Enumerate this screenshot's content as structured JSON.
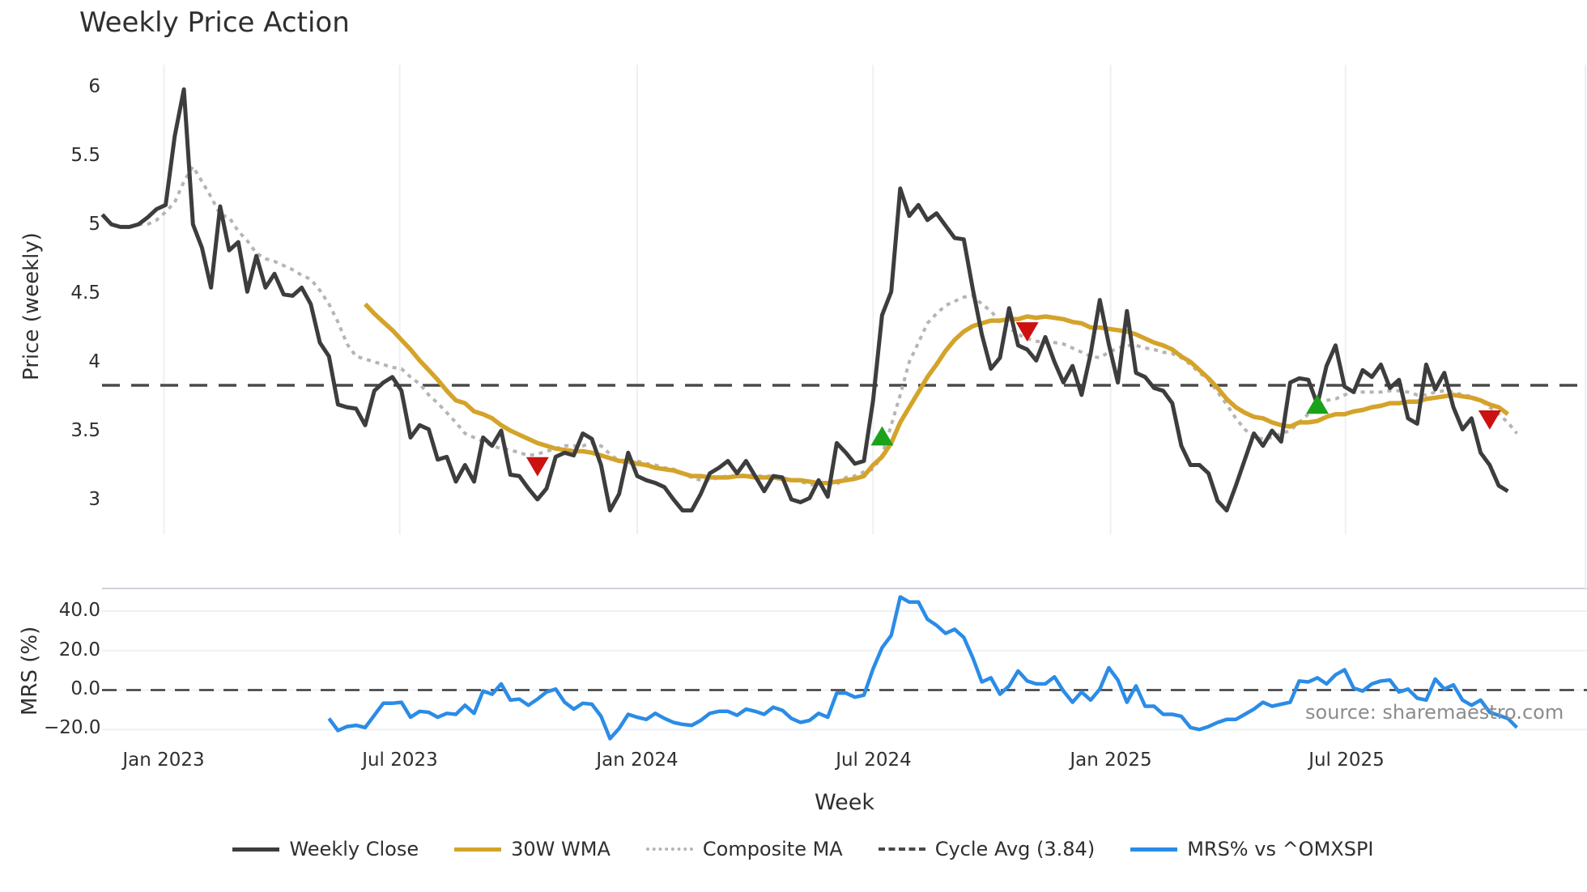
{
  "title": "Weekly Price Action",
  "watermark": "source: sharemaestro.com",
  "axes": {
    "price_ylabel": "Price (weekly)",
    "mrs_ylabel": "MRS (%)",
    "xlabel": "Week",
    "price_yticks": [
      "6",
      "5.5",
      "5",
      "4.5",
      "4",
      "3.5",
      "3"
    ],
    "mrs_yticks": [
      "40.0",
      "20.0",
      "0.0",
      "−20.0"
    ],
    "xticks": [
      "Jan 2023",
      "Jul 2023",
      "Jan 2024",
      "Jul 2024",
      "Jan 2025",
      "Jul 2025"
    ]
  },
  "legend": [
    {
      "label": "Weekly Close",
      "color": "#3d3d3d",
      "style": "solid"
    },
    {
      "label": "30W WMA",
      "color": "#d4a32a",
      "style": "solid"
    },
    {
      "label": "Composite MA",
      "color": "#b5b5b5",
      "style": "dotted"
    },
    {
      "label": "Cycle Avg (3.84)",
      "color": "#4a4a4a",
      "style": "dashed"
    },
    {
      "label": "MRS% vs ^OMXSPI",
      "color": "#2b8ce6",
      "style": "solid"
    }
  ],
  "colors": {
    "close": "#3d3d3d",
    "wma": "#d4a32a",
    "composite": "#b5b5b5",
    "cycle": "#4a4a4a",
    "mrs": "#2b8ce6",
    "buy": "#1aa31a",
    "sell": "#cc1111",
    "grid": "#eef0f3"
  },
  "chart_data": [
    {
      "type": "line",
      "title": "Weekly Price Action",
      "xlabel": "Week",
      "ylabel": "Price (weekly)",
      "ylim": [
        2.8,
        6.15
      ],
      "x_tick_labels": [
        "Jan 2023",
        "Jul 2023",
        "Jan 2024",
        "Jul 2024",
        "Jan 2025",
        "Jul 2025"
      ],
      "x_tick_week_index": [
        6.8,
        32.8,
        59.0,
        85.0,
        111.2,
        137.1
      ],
      "grid": "vertical",
      "legend_position": "bottom",
      "series": [
        {
          "name": "Weekly Close",
          "start_index": 0,
          "values": [
            5.08,
            5.01,
            4.99,
            4.99,
            5.01,
            5.06,
            5.12,
            5.15,
            5.65,
            5.99,
            5.01,
            4.84,
            4.55,
            5.14,
            4.82,
            4.88,
            4.52,
            4.78,
            4.55,
            4.65,
            4.5,
            4.49,
            4.55,
            4.43,
            4.15,
            4.05,
            3.7,
            3.68,
            3.67,
            3.55,
            3.8,
            3.86,
            3.9,
            3.8,
            3.46,
            3.55,
            3.52,
            3.3,
            3.32,
            3.14,
            3.26,
            3.14,
            3.46,
            3.4,
            3.51,
            3.19,
            3.18,
            3.09,
            3.01,
            3.09,
            3.32,
            3.35,
            3.33,
            3.49,
            3.45,
            3.26,
            2.93,
            3.05,
            3.35,
            3.18,
            3.15,
            3.13,
            3.1,
            3.01,
            2.93,
            2.93,
            3.05,
            3.2,
            3.24,
            3.29,
            3.2,
            3.29,
            3.18,
            3.07,
            3.18,
            3.17,
            3.01,
            2.99,
            3.02,
            3.15,
            3.03,
            3.42,
            3.35,
            3.27,
            3.29,
            3.73,
            4.35,
            4.52,
            5.27,
            5.07,
            5.15,
            5.04,
            5.09,
            5.0,
            4.91,
            4.9,
            4.54,
            4.21,
            3.96,
            4.04,
            4.4,
            4.13,
            4.1,
            4.02,
            4.19,
            4.01,
            3.86,
            3.98,
            3.77,
            4.07,
            4.46,
            4.14,
            3.86,
            4.38,
            3.93,
            3.9,
            3.82,
            3.8,
            3.71,
            3.4,
            3.26,
            3.26,
            3.2,
            3.0,
            2.93,
            3.11,
            3.3,
            3.49,
            3.4,
            3.51,
            3.43,
            3.86,
            3.89,
            3.88,
            3.7,
            3.98,
            4.13,
            3.83,
            3.79,
            3.95,
            3.9,
            3.99,
            3.82,
            3.88,
            3.6,
            3.56,
            3.99,
            3.81,
            3.93,
            3.68,
            3.52,
            3.6,
            3.35,
            3.26,
            3.11,
            3.07
          ]
        },
        {
          "name": "30W WMA",
          "start_index": 29,
          "values": [
            4.43,
            4.36,
            4.3,
            4.24,
            4.17,
            4.1,
            4.02,
            3.95,
            3.88,
            3.8,
            3.73,
            3.71,
            3.65,
            3.63,
            3.6,
            3.55,
            3.51,
            3.48,
            3.45,
            3.42,
            3.4,
            3.38,
            3.37,
            3.36,
            3.36,
            3.35,
            3.33,
            3.31,
            3.29,
            3.29,
            3.27,
            3.26,
            3.24,
            3.23,
            3.22,
            3.2,
            3.18,
            3.18,
            3.17,
            3.17,
            3.17,
            3.18,
            3.18,
            3.17,
            3.17,
            3.17,
            3.16,
            3.15,
            3.15,
            3.14,
            3.13,
            3.13,
            3.14,
            3.15,
            3.16,
            3.18,
            3.26,
            3.32,
            3.42,
            3.57,
            3.68,
            3.79,
            3.9,
            3.99,
            4.09,
            4.17,
            4.23,
            4.27,
            4.29,
            4.31,
            4.31,
            4.32,
            4.32,
            4.34,
            4.33,
            4.34,
            4.33,
            4.32,
            4.3,
            4.29,
            4.26,
            4.26,
            4.25,
            4.24,
            4.23,
            4.21,
            4.18,
            4.15,
            4.13,
            4.1,
            4.05,
            4.01,
            3.95,
            3.89,
            3.82,
            3.74,
            3.68,
            3.64,
            3.61,
            3.6,
            3.57,
            3.55,
            3.54,
            3.57,
            3.57,
            3.58,
            3.61,
            3.63,
            3.63,
            3.65,
            3.66,
            3.68,
            3.69,
            3.71,
            3.71,
            3.72,
            3.72,
            3.74,
            3.75,
            3.76,
            3.77,
            3.76,
            3.75,
            3.73,
            3.7,
            3.68,
            3.63
          ]
        },
        {
          "name": "Composite MA",
          "start_index": 4,
          "values": [
            5.01,
            5.01,
            5.04,
            5.1,
            5.17,
            5.32,
            5.43,
            5.32,
            5.21,
            5.08,
            5.06,
            4.96,
            4.89,
            4.8,
            4.76,
            4.74,
            4.71,
            4.68,
            4.64,
            4.61,
            4.53,
            4.43,
            4.3,
            4.14,
            4.05,
            4.03,
            4.01,
            3.99,
            3.97,
            3.96,
            3.9,
            3.85,
            3.77,
            3.71,
            3.64,
            3.57,
            3.49,
            3.46,
            3.43,
            3.4,
            3.38,
            3.37,
            3.35,
            3.33,
            3.34,
            3.36,
            3.38,
            3.4,
            3.4,
            3.4,
            3.42,
            3.4,
            3.34,
            3.29,
            3.27,
            3.29,
            3.27,
            3.26,
            3.24,
            3.23,
            3.2,
            3.17,
            3.15,
            3.15,
            3.17,
            3.18,
            3.18,
            3.19,
            3.18,
            3.18,
            3.18,
            3.17,
            3.15,
            3.14,
            3.12,
            3.11,
            3.12,
            3.12,
            3.17,
            3.18,
            3.21,
            3.23,
            3.33,
            3.55,
            3.77,
            4.01,
            4.15,
            4.29,
            4.36,
            4.42,
            4.45,
            4.48,
            4.49,
            4.43,
            4.38,
            4.3,
            4.26,
            4.21,
            4.18,
            4.16,
            4.15,
            4.15,
            4.14,
            4.11,
            4.08,
            4.05,
            4.04,
            4.08,
            4.11,
            4.13,
            4.13,
            4.11,
            4.1,
            4.08,
            4.07,
            4.04,
            3.99,
            3.93,
            3.88,
            3.79,
            3.7,
            3.6,
            3.52,
            3.46,
            3.45,
            3.46,
            3.49,
            3.51,
            3.57,
            3.63,
            3.68,
            3.73,
            3.74,
            3.77,
            3.79,
            3.79,
            3.79,
            3.79,
            3.8,
            3.8,
            3.79,
            3.77,
            3.77,
            3.79,
            3.8,
            3.79,
            3.77,
            3.76,
            3.73,
            3.68,
            3.63,
            3.57,
            3.49
          ]
        },
        {
          "name": "Cycle Avg (3.84)",
          "constant": 3.84
        }
      ],
      "markers": [
        {
          "type": "sell",
          "week_index": 48,
          "price": 3.26
        },
        {
          "type": "buy",
          "week_index": 86,
          "price": 3.46
        },
        {
          "type": "sell",
          "week_index": 102,
          "price": 4.24
        },
        {
          "type": "buy",
          "week_index": 134,
          "price": 3.69
        },
        {
          "type": "sell",
          "week_index": 153,
          "price": 3.6
        }
      ]
    },
    {
      "type": "line",
      "title": "",
      "xlabel": "Week",
      "ylabel": "MRS (%)",
      "ylim": [
        -27,
        52
      ],
      "grid": "horizontal",
      "series": [
        {
          "name": "MRS% vs ^OMXSPI",
          "start_index": 25,
          "values": [
            -14.4,
            -20.5,
            -18.5,
            -17.9,
            -19.0,
            -12.8,
            -6.7,
            -6.7,
            -6.2,
            -13.8,
            -10.8,
            -11.3,
            -13.8,
            -11.8,
            -12.3,
            -7.7,
            -11.8,
            -0.5,
            -2.1,
            3.1,
            -5.1,
            -4.6,
            -7.7,
            -4.6,
            -1.0,
            0.5,
            -6.2,
            -9.7,
            -6.7,
            -7.2,
            -13.3,
            -24.6,
            -19.5,
            -12.3,
            -13.8,
            -14.9,
            -11.8,
            -14.4,
            -16.4,
            -17.4,
            -17.9,
            -15.4,
            -11.8,
            -10.8,
            -10.8,
            -12.8,
            -9.7,
            -10.8,
            -12.3,
            -8.7,
            -10.3,
            -14.4,
            -16.4,
            -15.4,
            -11.8,
            -13.8,
            -1.5,
            -1.5,
            -3.6,
            -2.6,
            10.8,
            21.5,
            27.7,
            47.2,
            44.6,
            44.6,
            35.9,
            32.8,
            28.7,
            30.8,
            26.7,
            16.4,
            4.1,
            6.2,
            -2.1,
            2.1,
            9.7,
            4.6,
            3.1,
            3.1,
            6.7,
            -0.5,
            -6.2,
            -1.0,
            -5.1,
            0.5,
            11.3,
            5.1,
            -6.2,
            2.1,
            -8.2,
            -8.2,
            -12.3,
            -12.3,
            -13.3,
            -19.0,
            -20.0,
            -18.5,
            -16.4,
            -14.9,
            -14.9,
            -12.3,
            -9.7,
            -6.2,
            -8.2,
            -7.2,
            -6.2,
            4.6,
            4.1,
            6.2,
            3.1,
            7.7,
            10.3,
            1.0,
            -0.5,
            3.1,
            4.6,
            5.1,
            -1.0,
            0.5,
            -4.1,
            -5.1,
            5.6,
            0.5,
            2.6,
            -5.1,
            -7.7,
            -5.1,
            -11.3,
            -12.8,
            -14.4,
            -19.0
          ]
        },
        {
          "name": "Zero line",
          "constant": 0
        }
      ]
    }
  ]
}
